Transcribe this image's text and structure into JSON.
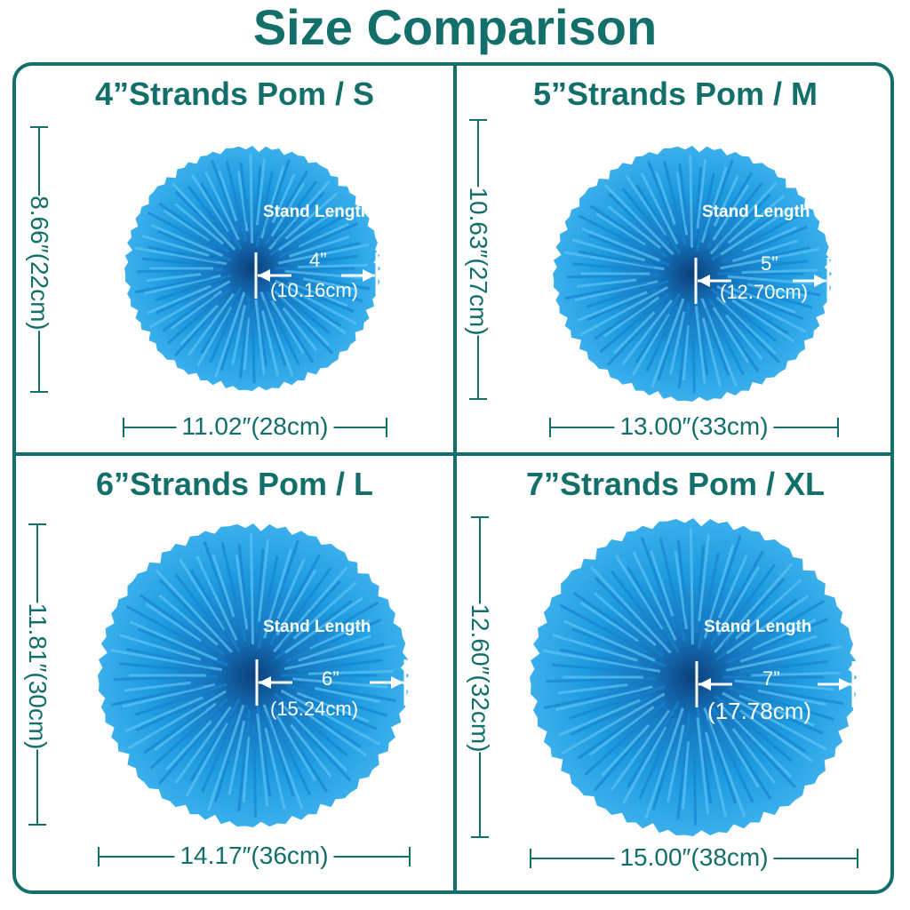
{
  "title": "Size Comparison",
  "colors": {
    "accent": "#136f6a",
    "pom": "#1e9be0",
    "pom_dark": "#0b3f7a"
  },
  "poms": [
    {
      "title": "4”Strands Pom / S",
      "height": "8.66″(22cm)",
      "width": "11.02″(28cm)",
      "stand_label": "Stand Length",
      "stand_in": "4”",
      "stand_cm": "(10.16cm)"
    },
    {
      "title": "5”Strands Pom / M",
      "height": "10.63″(27cm)",
      "width": "13.00″(33cm)",
      "stand_label": "Stand Length",
      "stand_in": "5”",
      "stand_cm": "(12.70cm)"
    },
    {
      "title": "6”Strands Pom / L",
      "height": "11.81″(30cm)",
      "width": "14.17″(36cm)",
      "stand_label": "Stand Length",
      "stand_in": "6”",
      "stand_cm": "(15.24cm)"
    },
    {
      "title": "7”Strands Pom / XL",
      "height": "12.60″(32cm)",
      "width": "15.00″(38cm)",
      "stand_label": "Stand Length",
      "stand_in": "7”",
      "stand_cm": "(17.78cm)"
    }
  ]
}
